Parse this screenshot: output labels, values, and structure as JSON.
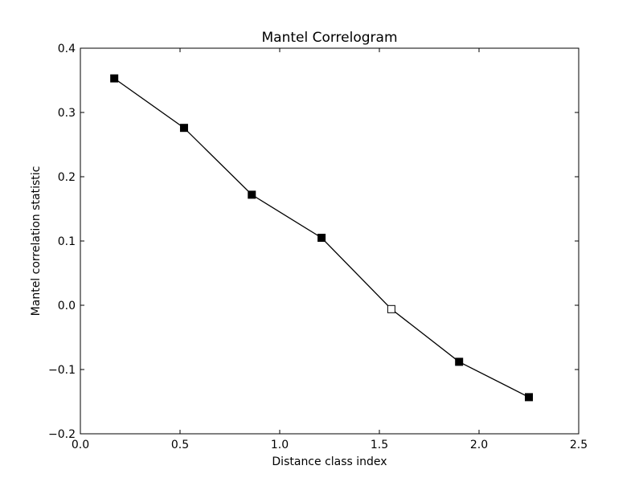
{
  "chart_data": {
    "type": "line",
    "title": "Mantel Correlogram",
    "xlabel": "Distance class index",
    "ylabel": "Mantel correlation statistic",
    "xlim": [
      0.0,
      2.5
    ],
    "ylim": [
      -0.2,
      0.4
    ],
    "x_ticks": [
      "0.0",
      "0.5",
      "1.0",
      "1.5",
      "2.0",
      "2.5"
    ],
    "y_ticks": [
      "−0.2",
      "−0.1",
      "0.0",
      "0.1",
      "0.2",
      "0.3",
      "0.4"
    ],
    "x_tick_values": [
      0.0,
      0.5,
      1.0,
      1.5,
      2.0,
      2.5
    ],
    "y_tick_values": [
      -0.2,
      -0.1,
      0.0,
      0.1,
      0.2,
      0.3,
      0.4
    ],
    "grid": false,
    "series": [
      {
        "points": [
          {
            "x": 0.17,
            "y": 0.353,
            "filled": true
          },
          {
            "x": 0.52,
            "y": 0.276,
            "filled": true
          },
          {
            "x": 0.86,
            "y": 0.172,
            "filled": true
          },
          {
            "x": 1.21,
            "y": 0.105,
            "filled": true
          },
          {
            "x": 1.56,
            "y": -0.006,
            "filled": false
          },
          {
            "x": 1.9,
            "y": -0.088,
            "filled": true
          },
          {
            "x": 2.25,
            "y": -0.143,
            "filled": true
          }
        ],
        "line_color": "#000000",
        "marker": "square",
        "filled_marker_color": "#000000",
        "open_marker_color": "#ffffff"
      }
    ]
  }
}
